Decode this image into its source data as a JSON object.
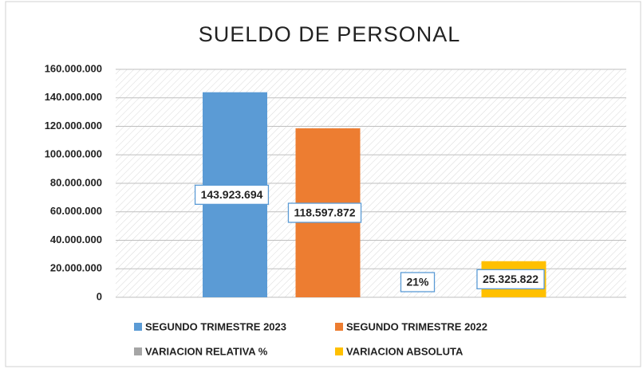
{
  "chart_data": {
    "type": "bar",
    "title": "SUELDO DE PERSONAL",
    "categories": [
      null
    ],
    "series": [
      {
        "name": "SEGUNDO TRIMESTRE 2023",
        "color": "#5b9bd5",
        "values": [
          143923694
        ],
        "value_labels": [
          "143.923.694"
        ]
      },
      {
        "name": "SEGUNDO TRIMESTRE 2022",
        "color": "#ed7d31",
        "values": [
          118597872
        ],
        "value_labels": [
          "118.597.872"
        ]
      },
      {
        "name": "VARIACION RELATIVA %",
        "color": "#a5a5a5",
        "values": [
          21
        ],
        "value_labels": [
          "21%"
        ]
      },
      {
        "name": "VARIACION ABSOLUTA",
        "color": "#ffc000",
        "values": [
          25325822
        ],
        "value_labels": [
          "25.325.822"
        ]
      }
    ],
    "ylim": [
      0,
      160000000
    ],
    "yticks": [
      0,
      {
        "value": 20000000,
        "label": "20.000.000"
      },
      {
        "value": 40000000,
        "label": "40.000.000"
      },
      {
        "value": 60000000,
        "label": "60.000.000"
      },
      {
        "value": 80000000,
        "label": "80.000.000"
      },
      {
        "value": 100000000,
        "label": "100.000.000"
      },
      {
        "value": 120000000,
        "label": "120.000.000"
      },
      {
        "value": 140000000,
        "label": "140.000.000"
      },
      {
        "value": 160000000,
        "label": "160.000.000"
      }
    ],
    "grid": true
  }
}
